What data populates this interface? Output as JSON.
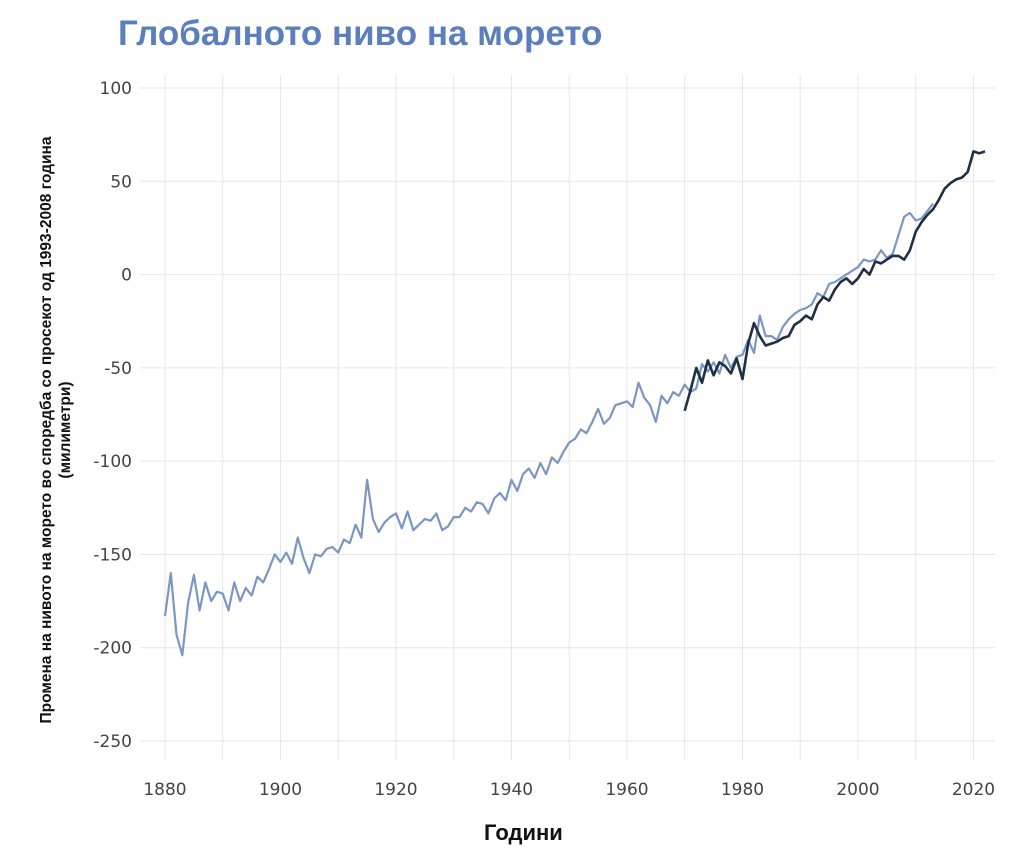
{
  "chart_data": {
    "type": "line",
    "title": "Глобалното ниво на морето",
    "ylabel_lines": [
      "Промена на нивото на морето во споредба со просекот од 1993-2008 година",
      "(милиметри)"
    ],
    "xlabel": "Години",
    "xlim": [
      1880,
      2022
    ],
    "ylim": [
      -250,
      100
    ],
    "xticks": [
      1880,
      1900,
      1920,
      1940,
      1960,
      1980,
      2000,
      2020
    ],
    "yticks": [
      100,
      50,
      0,
      -50,
      -100,
      -150,
      -200,
      -250
    ],
    "grid": true,
    "colors": {
      "series1": "#7b96c2",
      "series2": "#1f3044",
      "title": "#5b7fbd",
      "grid": "#e6e6e6"
    },
    "series": [
      {
        "x": [
          1880,
          1881,
          1882,
          1883,
          1884,
          1885,
          1886,
          1887,
          1888,
          1889,
          1890,
          1891,
          1892,
          1893,
          1894,
          1895,
          1896,
          1897,
          1898,
          1899,
          1900,
          1901,
          1902,
          1903,
          1904,
          1905,
          1906,
          1907,
          1908,
          1909,
          1910,
          1911,
          1912,
          1913,
          1914,
          1915,
          1916,
          1917,
          1918,
          1919,
          1920,
          1921,
          1922,
          1923,
          1924,
          1925,
          1926,
          1927,
          1928,
          1929,
          1930,
          1931,
          1932,
          1933,
          1934,
          1935,
          1936,
          1937,
          1938,
          1939,
          1940,
          1941,
          1942,
          1943,
          1944,
          1945,
          1946,
          1947,
          1948,
          1949,
          1950,
          1951,
          1952,
          1953,
          1954,
          1955,
          1956,
          1957,
          1958,
          1959,
          1960,
          1961,
          1962,
          1963,
          1964,
          1965,
          1966,
          1967,
          1968,
          1969,
          1970,
          1971,
          1972,
          1973,
          1974,
          1975,
          1976,
          1977,
          1978,
          1979,
          1980,
          1981,
          1982,
          1983,
          1984,
          1985,
          1986,
          1987,
          1988,
          1989,
          1990,
          1991,
          1992,
          1993,
          1994,
          1995,
          1996,
          1997,
          1998,
          1999,
          2000,
          2001,
          2002,
          2003,
          2004,
          2005,
          2006,
          2007,
          2008,
          2009,
          2010,
          2011,
          2012,
          2013
        ],
        "values": [
          -183,
          -160,
          -193,
          -204,
          -176,
          -161,
          -180,
          -165,
          -175,
          -170,
          -171,
          -180,
          -165,
          -175,
          -168,
          -172,
          -162,
          -165,
          -158,
          -150,
          -154,
          -149,
          -155,
          -141,
          -152,
          -160,
          -150,
          -151,
          -147,
          -146,
          -149,
          -142,
          -144,
          -134,
          -141,
          -110,
          -131,
          -138,
          -133,
          -130,
          -128,
          -136,
          -127,
          -137,
          -134,
          -131,
          -132,
          -128,
          -137,
          -135,
          -130,
          -130,
          -125,
          -127,
          -122,
          -123,
          -128,
          -120,
          -117,
          -121,
          -110,
          -116,
          -107,
          -104,
          -109,
          -101,
          -107,
          -98,
          -101,
          -95,
          -90,
          -88,
          -83,
          -85,
          -79,
          -72,
          -80,
          -77,
          -70,
          -69,
          -68,
          -71,
          -58,
          -66,
          -70,
          -79,
          -65,
          -69,
          -63,
          -65,
          -59,
          -63,
          -61,
          -48,
          -52,
          -47,
          -53,
          -43,
          -50,
          -44,
          -43,
          -35,
          -42,
          -22,
          -33,
          -33,
          -35,
          -28,
          -24,
          -21,
          -19,
          -18,
          -16,
          -10,
          -12,
          -5,
          -4,
          -2,
          0,
          2,
          4,
          8,
          7,
          8,
          13,
          9,
          11,
          21,
          31,
          33,
          29,
          30,
          34,
          38
        ]
      },
      {
        "x": [
          1970,
          1971,
          1972,
          1973,
          1974,
          1975,
          1976,
          1977,
          1978,
          1979,
          1980,
          1981,
          1982,
          1983,
          1984,
          1985,
          1986,
          1987,
          1988,
          1989,
          1990,
          1991,
          1992,
          1993,
          1994,
          1995,
          1996,
          1997,
          1998,
          1999,
          2000,
          2001,
          2002,
          2003,
          2004,
          2005,
          2006,
          2007,
          2008,
          2009,
          2010,
          2011,
          2012,
          2013,
          2014,
          2015,
          2016,
          2017,
          2018,
          2019,
          2020,
          2021,
          2022
        ],
        "values": [
          -73,
          -62,
          -50,
          -58,
          -46,
          -54,
          -47,
          -49,
          -53,
          -45,
          -56,
          -37,
          -26,
          -33,
          -38,
          -37,
          -36,
          -34,
          -33,
          -27,
          -25,
          -22,
          -24,
          -16,
          -12,
          -14,
          -8,
          -4,
          -2,
          -5,
          -2,
          3,
          0,
          7,
          6,
          8,
          10,
          10,
          8,
          13,
          23,
          28,
          32,
          35,
          40,
          46,
          49,
          51,
          52,
          55,
          66,
          65,
          66
        ]
      }
    ]
  }
}
